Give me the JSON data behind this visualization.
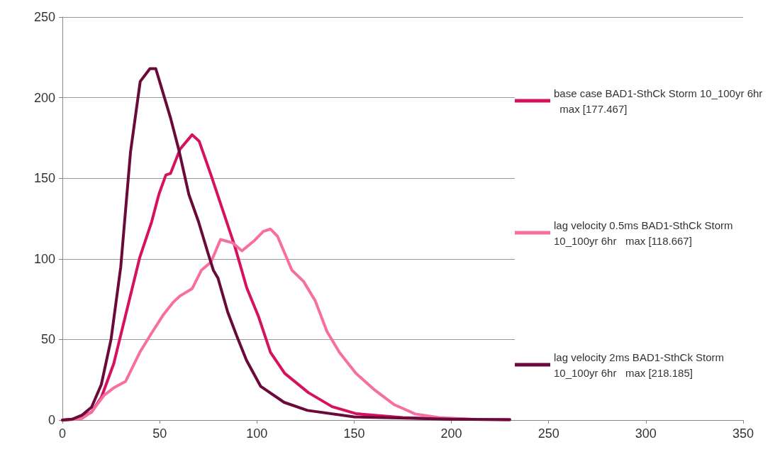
{
  "chart_data": {
    "type": "line",
    "xlim": [
      0,
      350
    ],
    "xticks": [
      0,
      50,
      100,
      150,
      200,
      250,
      300,
      350
    ],
    "ylim": [
      0,
      250
    ],
    "yticks": [
      0,
      50,
      100,
      150,
      200,
      250
    ],
    "grid": "y",
    "legend": "right",
    "marker": "none",
    "line_style": "solid",
    "series": [
      {
        "name": "base case BAD1-SthCk Storm 10_100yr 6hr   max [177.467]",
        "color": "#d6125f",
        "x": [
          0,
          5,
          10,
          15,
          20,
          26.4,
          33.7,
          39.8,
          45.9,
          49.6,
          53.2,
          55.6,
          60.5,
          66.7,
          70.3,
          76.4,
          82.5,
          88.6,
          94.8,
          100.9,
          107,
          114.3,
          126.5,
          138.7,
          150.9,
          175,
          200,
          230
        ],
        "values": [
          0,
          0.5,
          2,
          5,
          14,
          35,
          71,
          101,
          123,
          140,
          152,
          153,
          168,
          177,
          173,
          152,
          130,
          108,
          82,
          64,
          42,
          29,
          17,
          8.3,
          4,
          1.5,
          0.6,
          0.3
        ]
      },
      {
        "name": "lag velocity 0.5ms BAD1-SthCk Storm 10_100yr 6hr   max [118.667]",
        "color": "#f76f9f",
        "x": [
          0,
          5,
          10,
          15,
          21.5,
          26.4,
          32.5,
          39.8,
          45.9,
          52,
          56.9,
          60.5,
          66.7,
          71.5,
          76.4,
          81.3,
          87.4,
          92.3,
          98.4,
          103.3,
          107,
          110.6,
          118,
          124,
          130,
          136,
          142.4,
          150.9,
          160.7,
          170.4,
          181.4,
          193.6,
          210,
          230
        ],
        "values": [
          0,
          0.3,
          1,
          5,
          15.5,
          20,
          24,
          42,
          54,
          65.5,
          73,
          77,
          81.5,
          93,
          98,
          112,
          110,
          105,
          111,
          117,
          118.5,
          114,
          93,
          86,
          74,
          55,
          42,
          29,
          18.5,
          9.7,
          3.8,
          1.5,
          0.6,
          0.3
        ]
      },
      {
        "name": "lag velocity 2ms BAD1-SthCk Storm 10_100yr 6hr   max [218.185]",
        "color": "#6b0a3a",
        "x": [
          0,
          5,
          10,
          15,
          20,
          25,
          30,
          35,
          40,
          45,
          48,
          50,
          55.7,
          60,
          65,
          70,
          75,
          77.6,
          80,
          85,
          89.7,
          94.7,
          101.9,
          114,
          126,
          150,
          200,
          230
        ],
        "values": [
          0,
          0.5,
          3,
          8,
          22,
          50,
          95,
          166,
          210,
          218,
          218,
          210,
          187,
          167,
          140,
          123,
          103,
          93,
          88,
          67,
          52,
          37,
          21,
          11,
          6,
          2,
          0.5,
          0.2
        ]
      }
    ]
  }
}
